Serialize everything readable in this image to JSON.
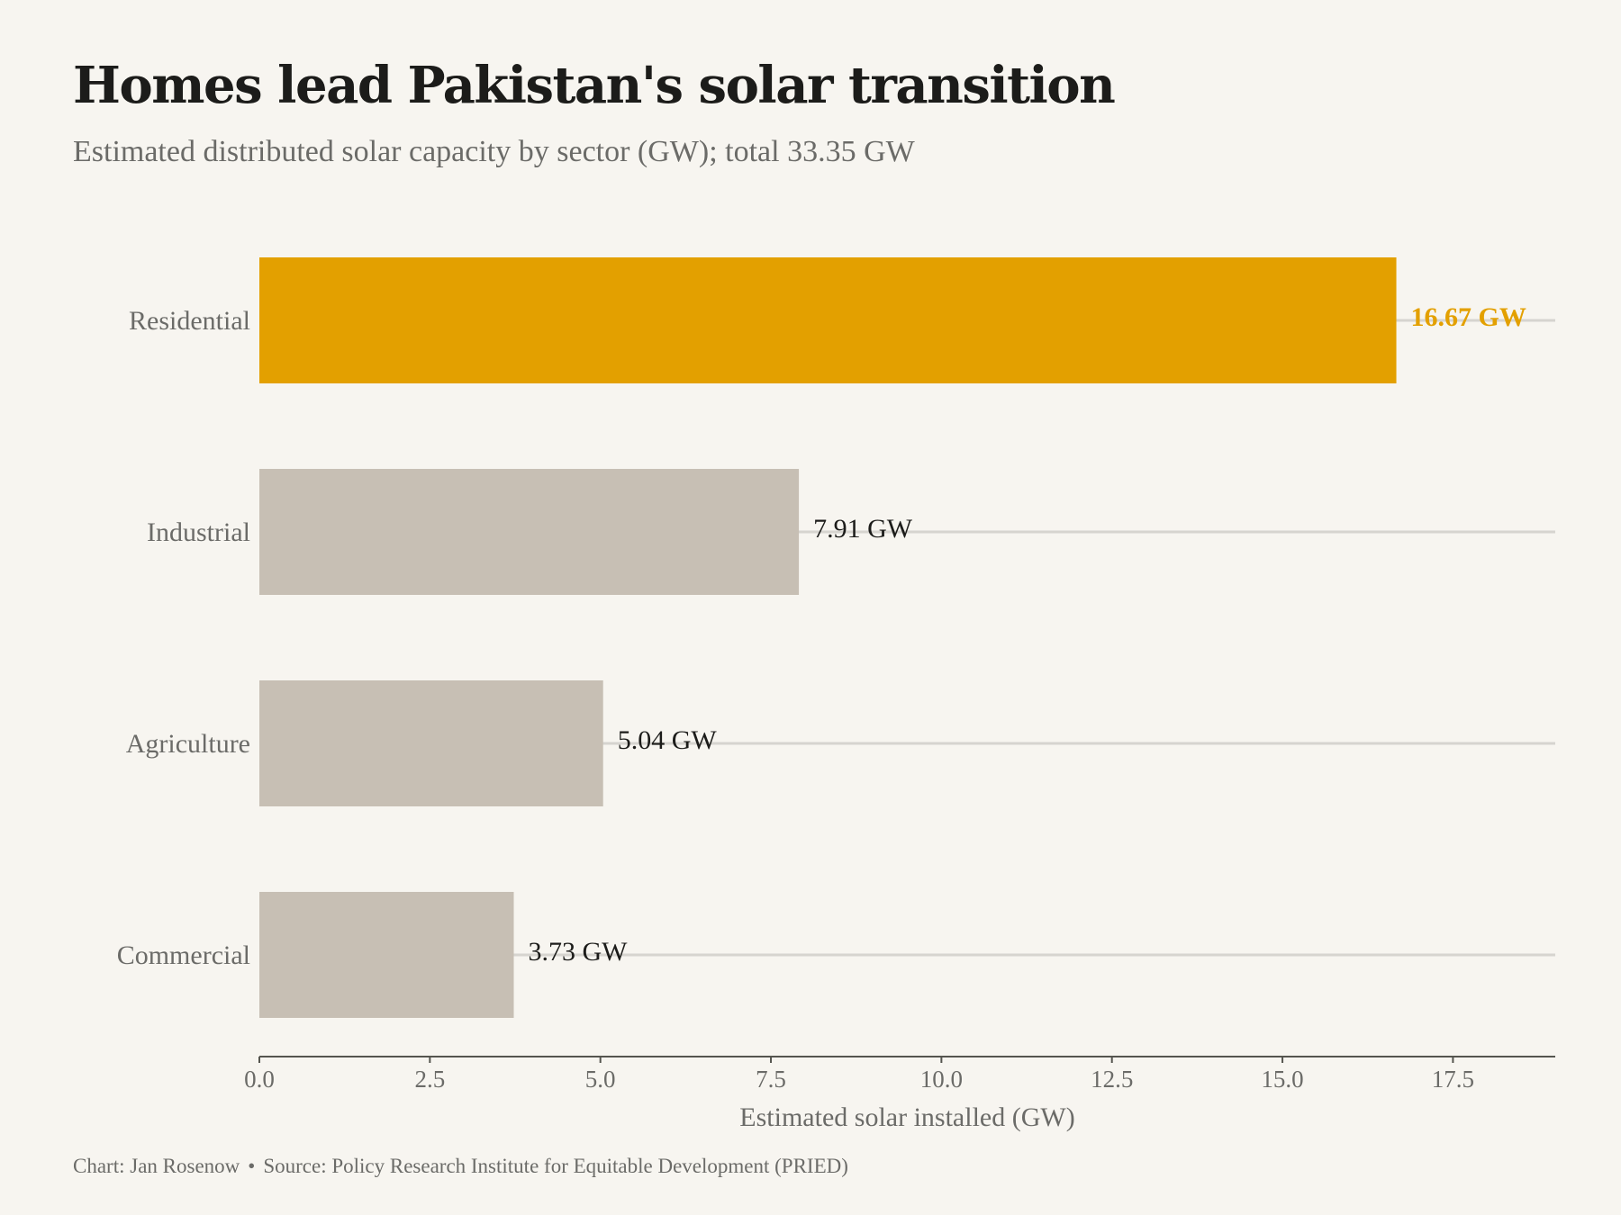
{
  "header": {
    "title": "Homes lead Pakistan's solar transition",
    "subtitle": "Estimated distributed solar capacity by sector (GW); total 33.35 GW"
  },
  "caption": {
    "author": "Chart: Jan Rosenow",
    "separator": "•",
    "source": "Source: Policy Research Institute for Equitable Development (PRIED)"
  },
  "colors": {
    "background": "#f7f5f0",
    "highlight": "#e3a000",
    "bar": "#c7bfb4",
    "gridline": "#d6d4cf",
    "axis": "#55554f",
    "label_text": "#6b6b68",
    "value_text": "#1c1c1a"
  },
  "chart_data": {
    "type": "bar",
    "orientation": "horizontal",
    "title": "Homes lead Pakistan's solar transition",
    "subtitle": "Estimated distributed solar capacity by sector (GW); total 33.35 GW",
    "categories": [
      "Residential",
      "Industrial",
      "Agriculture",
      "Commercial"
    ],
    "values": [
      16.67,
      7.91,
      5.04,
      3.73
    ],
    "value_labels": [
      "16.67 GW",
      "7.91 GW",
      "5.04 GW",
      "3.73 GW"
    ],
    "highlighted_category": "Residential",
    "xlabel": "Estimated solar installed (GW)",
    "ylabel": "",
    "xlim": [
      0,
      19
    ],
    "xticks": [
      0,
      2.5,
      5,
      7.5,
      10,
      12.5,
      15,
      17.5
    ],
    "xtick_labels": [
      "0.0",
      "2.5",
      "5.0",
      "7.5",
      "10.0",
      "12.5",
      "15.0",
      "17.5"
    ],
    "grid": "horizontal lines through category centers",
    "legend": "none"
  }
}
